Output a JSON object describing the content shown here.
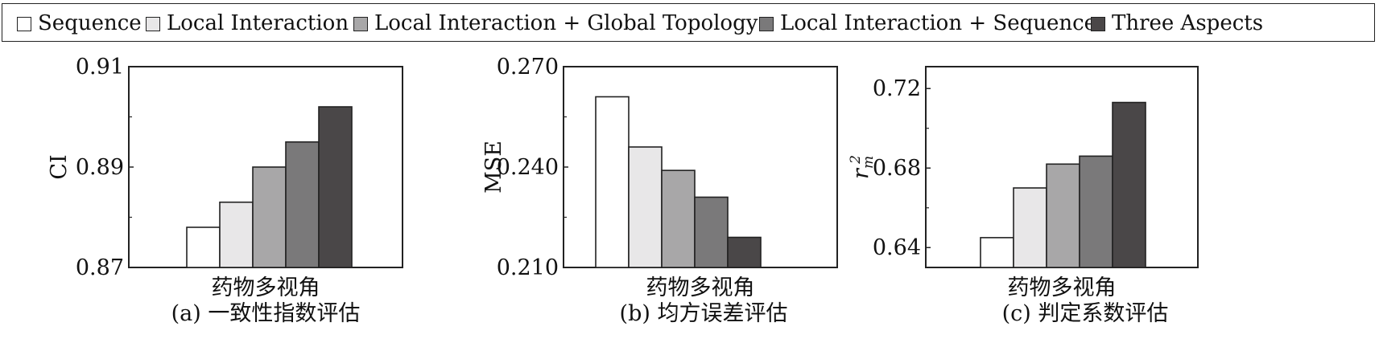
{
  "legend": {
    "items": [
      {
        "label": "Sequence",
        "color": "#ffffff"
      },
      {
        "label": "Local Interaction",
        "color": "#e8e7e8"
      },
      {
        "label": "Local Interaction + Global Topology",
        "color": "#a8a7a8"
      },
      {
        "label": "Local Interaction + Sequence",
        "color": "#7a797a"
      },
      {
        "label": "Three Aspects",
        "color": "#4a4748"
      }
    ]
  },
  "chart_data": [
    {
      "type": "bar",
      "categories": [
        "药物多视角"
      ],
      "xlabel": "药物多视角",
      "ylabel": "CI",
      "caption": "(a) 一致性指数评估",
      "ylim": [
        0.87,
        0.91
      ],
      "yticks": [
        "0.87",
        "0.89",
        "0.91"
      ],
      "series": [
        {
          "name": "Sequence",
          "values": [
            0.878
          ]
        },
        {
          "name": "Local Interaction",
          "values": [
            0.883
          ]
        },
        {
          "name": "Local Interaction + Global Topology",
          "values": [
            0.89
          ]
        },
        {
          "name": "Local Interaction + Sequence",
          "values": [
            0.895
          ]
        },
        {
          "name": "Three Aspects",
          "values": [
            0.902
          ]
        }
      ]
    },
    {
      "type": "bar",
      "categories": [
        "药物多视角"
      ],
      "xlabel": "药物多视角",
      "ylabel": "MSE",
      "caption": "(b) 均方误差评估",
      "ylim": [
        0.21,
        0.27
      ],
      "yticks": [
        "0.210",
        "0.240",
        "0.270"
      ],
      "series": [
        {
          "name": "Sequence",
          "values": [
            0.261
          ]
        },
        {
          "name": "Local Interaction",
          "values": [
            0.246
          ]
        },
        {
          "name": "Local Interaction + Global Topology",
          "values": [
            0.239
          ]
        },
        {
          "name": "Local Interaction + Sequence",
          "values": [
            0.231
          ]
        },
        {
          "name": "Three Aspects",
          "values": [
            0.219
          ]
        }
      ]
    },
    {
      "type": "bar",
      "categories": [
        "药物多视角"
      ],
      "xlabel": "药物多视角",
      "ylabel": "r_m^2",
      "ylabel_main": "r",
      "ylabel_sub": "m",
      "ylabel_sup": "2",
      "caption": "(c) 判定系数评估",
      "ylim": [
        0.63,
        0.731
      ],
      "yticks": [
        "0.64",
        "0.68",
        "0.72"
      ],
      "ytick_values": [
        0.64,
        0.68,
        0.72
      ],
      "series": [
        {
          "name": "Sequence",
          "values": [
            0.645
          ]
        },
        {
          "name": "Local Interaction",
          "values": [
            0.67
          ]
        },
        {
          "name": "Local Interaction + Global Topology",
          "values": [
            0.682
          ]
        },
        {
          "name": "Local Interaction + Sequence",
          "values": [
            0.686
          ]
        },
        {
          "name": "Three Aspects",
          "values": [
            0.713
          ]
        }
      ]
    }
  ]
}
